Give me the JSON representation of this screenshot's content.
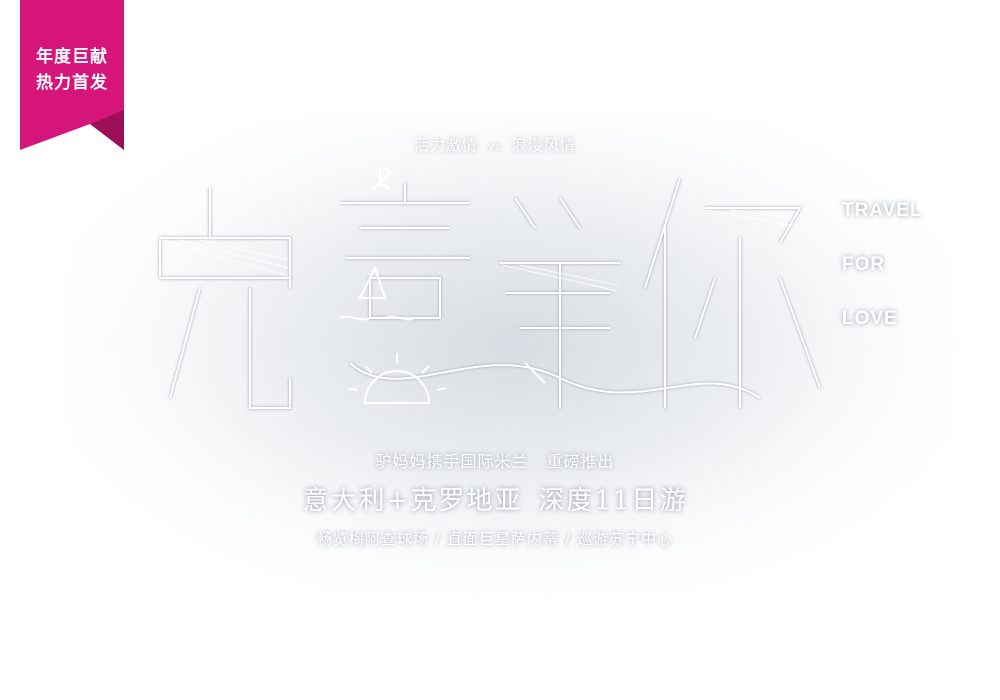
{
  "colors": {
    "banner": "#d6157a",
    "banner_shadow": "#9c1058",
    "text": "#ffffff",
    "glow": "#b6c0ca"
  },
  "banner": {
    "line1": "年度巨献",
    "line2": "热力首发"
  },
  "tagline": {
    "left": "活力激情",
    "vs": "vs",
    "right": "浪漫风情"
  },
  "title_art": {
    "chars": [
      "克",
      "意",
      "等",
      "你"
    ],
    "style": "outline-calligraphy"
  },
  "side_text": [
    "TRAVEL",
    "FOR",
    "LOVE"
  ],
  "subtitle": {
    "left": "驴妈妈携手国际米兰",
    "right": "重磅推出"
  },
  "headline": {
    "main": "意大利+克罗地亚",
    "tail": "深度11日游"
  },
  "features": [
    "畅览梅阿查球场",
    "直面巨星萨内蒂",
    "巡游苏宁中心"
  ],
  "feature_separator": "/"
}
